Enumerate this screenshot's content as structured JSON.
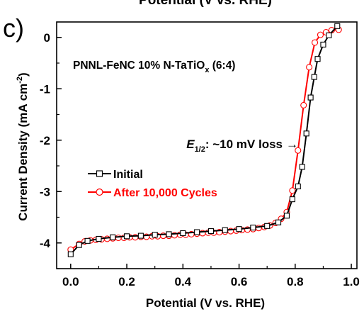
{
  "panel_label": "c)",
  "top_cut_label": "Potential (V vs. RHE)",
  "chart_data": {
    "type": "line",
    "xlabel": "Potential (V vs. RHE)",
    "ylabel": {
      "main": "Current Density (mA cm",
      "sup": "-2",
      "close": ")"
    },
    "xlim": [
      -0.05,
      1.02
    ],
    "ylim": [
      -4.5,
      0.3
    ],
    "x_ticks": [
      "0.0",
      "0.2",
      "0.4",
      "0.6",
      "0.8",
      "1.0"
    ],
    "y_ticks": [
      "0",
      "-1",
      "-2",
      "-3",
      "-4"
    ],
    "grid": false,
    "annotation_sample": {
      "main": "PNNL-FeNC 10% N-TaTiO",
      "sub": "x",
      "rest": " (6:4)"
    },
    "annotation_e12": {
      "E": "E",
      "sub": "1/2",
      "rest": ": ~10 mV loss",
      "arrow": "→"
    },
    "legend_position": "center-left",
    "series": [
      {
        "name": "Initial",
        "color": "#000000",
        "marker": "square",
        "x": [
          0.0,
          0.03,
          0.06,
          0.1,
          0.15,
          0.2,
          0.25,
          0.3,
          0.35,
          0.4,
          0.45,
          0.5,
          0.55,
          0.6,
          0.65,
          0.7,
          0.74,
          0.77,
          0.79,
          0.81,
          0.825,
          0.84,
          0.855,
          0.868,
          0.88,
          0.9,
          0.92,
          0.95
        ],
        "values": [
          -4.22,
          -4.04,
          -3.96,
          -3.92,
          -3.89,
          -3.87,
          -3.86,
          -3.84,
          -3.83,
          -3.81,
          -3.79,
          -3.77,
          -3.75,
          -3.73,
          -3.7,
          -3.67,
          -3.6,
          -3.47,
          -3.15,
          -2.9,
          -2.52,
          -1.87,
          -1.17,
          -0.77,
          -0.42,
          -0.14,
          0.04,
          0.22
        ]
      },
      {
        "name": "After 10,000 Cycles",
        "color": "#ff0000",
        "marker": "circle",
        "x": [
          0.0,
          0.03,
          0.05,
          0.07,
          0.09,
          0.11,
          0.13,
          0.15,
          0.17,
          0.19,
          0.21,
          0.23,
          0.25,
          0.27,
          0.29,
          0.31,
          0.33,
          0.35,
          0.37,
          0.39,
          0.41,
          0.43,
          0.45,
          0.47,
          0.49,
          0.51,
          0.53,
          0.55,
          0.57,
          0.59,
          0.61,
          0.63,
          0.65,
          0.67,
          0.69,
          0.71,
          0.73,
          0.75,
          0.77,
          0.79,
          0.81,
          0.83,
          0.85,
          0.87,
          0.89,
          0.91,
          0.93,
          0.955
        ],
        "values": [
          -4.13,
          -4.02,
          -3.97,
          -3.95,
          -3.94,
          -3.93,
          -3.92,
          -3.91,
          -3.9,
          -3.9,
          -3.89,
          -3.89,
          -3.88,
          -3.88,
          -3.87,
          -3.87,
          -3.86,
          -3.86,
          -3.85,
          -3.84,
          -3.84,
          -3.83,
          -3.82,
          -3.81,
          -3.8,
          -3.8,
          -3.79,
          -3.78,
          -3.77,
          -3.76,
          -3.75,
          -3.74,
          -3.73,
          -3.71,
          -3.69,
          -3.66,
          -3.61,
          -3.53,
          -3.4,
          -2.98,
          -2.2,
          -1.32,
          -0.58,
          -0.1,
          0.05,
          0.1,
          0.14,
          0.15
        ]
      }
    ]
  }
}
